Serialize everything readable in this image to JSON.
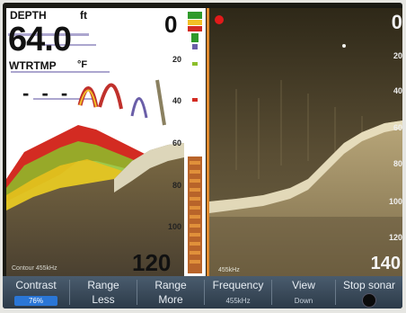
{
  "left_pane": {
    "depth_label": "DEPTH",
    "depth_unit": "ft",
    "depth_value": "64.0",
    "water_temp_label": "WTRTMP",
    "water_temp_unit": "°F",
    "water_temp_value": "- - -",
    "range_top": "0",
    "range_bottom": "120",
    "frequency": "Contour 455kHz",
    "depth_ticks": [
      "20",
      "40",
      "60",
      "80",
      "100"
    ]
  },
  "right_pane": {
    "range_top": "0",
    "range_bottom": "140",
    "frequency": "455kHz",
    "depth_ticks": [
      "20",
      "40",
      "60",
      "80",
      "100",
      "120"
    ]
  },
  "softkeys": [
    {
      "label": "Contrast",
      "value": "76%",
      "active": true
    },
    {
      "label": "Range",
      "value": "Less",
      "big": true
    },
    {
      "label": "Range",
      "value": "More",
      "big": true
    },
    {
      "label": "Frequency",
      "value": "455kHz"
    },
    {
      "label": "View",
      "value": "Down"
    },
    {
      "label": "Stop sonar",
      "value": ""
    }
  ],
  "colors": {
    "divider": "#e08a2e",
    "active_softkey": "#2a76d6",
    "record_indicator": "#e21a1a"
  }
}
